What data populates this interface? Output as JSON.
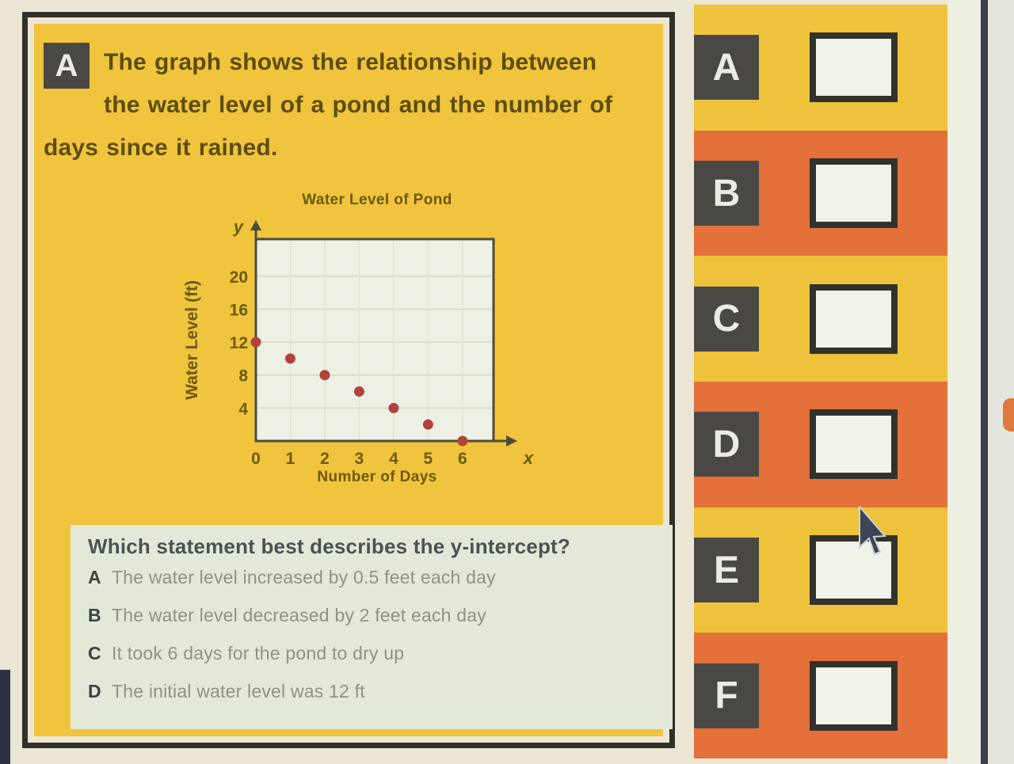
{
  "colors": {
    "page_bg": "#ebe6d3",
    "card_border": "#31302b",
    "card_bg": "#ece7d2",
    "question_bg": "#f0c43c",
    "row_yellow": "#efc23b",
    "row_orange": "#e4703a",
    "badge_bg": "#4a4845",
    "badge_text": "#edeae4",
    "checkbox_bg": "#f1f3e9",
    "checkbox_border": "#33312b",
    "question_text": "#5c4d12",
    "graph_text": "#6b5a10",
    "panel_bg": "#e3e8d9",
    "panel_question": "#4a5351",
    "option_letter": "#3a4441",
    "option_text": "#8f9287",
    "plot_bg": "#edf0e4",
    "axis_color": "#4e4b3a",
    "point_color": "#b2423c",
    "strip_white": "#edefe3",
    "divider": "#3a3e49",
    "strip_gray": "#e3e6dd",
    "blob": "#e0793f",
    "artifact": "#2b3144",
    "cursor": "#3e4656"
  },
  "question_card": {
    "badge": "A",
    "question_text": "The graph shows the relationship between the water level of a pond and the number of days since it rained.",
    "sub_question": "Which statement best describes the y-intercept?",
    "options": [
      {
        "letter": "A",
        "text": "The water level increased by 0.5 feet each day"
      },
      {
        "letter": "B",
        "text": "The water level decreased by 2 feet each day"
      },
      {
        "letter": "C",
        "text": "It took 6 days for the pond to dry up"
      },
      {
        "letter": "D",
        "text": "The initial water level was 12 ft"
      }
    ]
  },
  "chart_data": {
    "type": "scatter",
    "title": "Water Level of Pond",
    "xlabel": "Number of Days",
    "ylabel": "Water Level (ft)",
    "x_axis_letter": "x",
    "y_axis_letter": "y",
    "points": [
      [
        0,
        12
      ],
      [
        1,
        10
      ],
      [
        2,
        8
      ],
      [
        3,
        6
      ],
      [
        4,
        4
      ],
      [
        5,
        2
      ],
      [
        6,
        0
      ]
    ],
    "xticks": [
      0,
      1,
      2,
      3,
      4,
      5,
      6
    ],
    "yticks": [
      4,
      8,
      12,
      16,
      20
    ],
    "xlim": [
      0,
      6.9
    ],
    "ylim": [
      0,
      24.5
    ],
    "grid": true,
    "legend": false
  },
  "answer_panel": {
    "rows": [
      {
        "letter": "A"
      },
      {
        "letter": "B"
      },
      {
        "letter": "C"
      },
      {
        "letter": "D"
      },
      {
        "letter": "E"
      },
      {
        "letter": "F"
      }
    ]
  }
}
